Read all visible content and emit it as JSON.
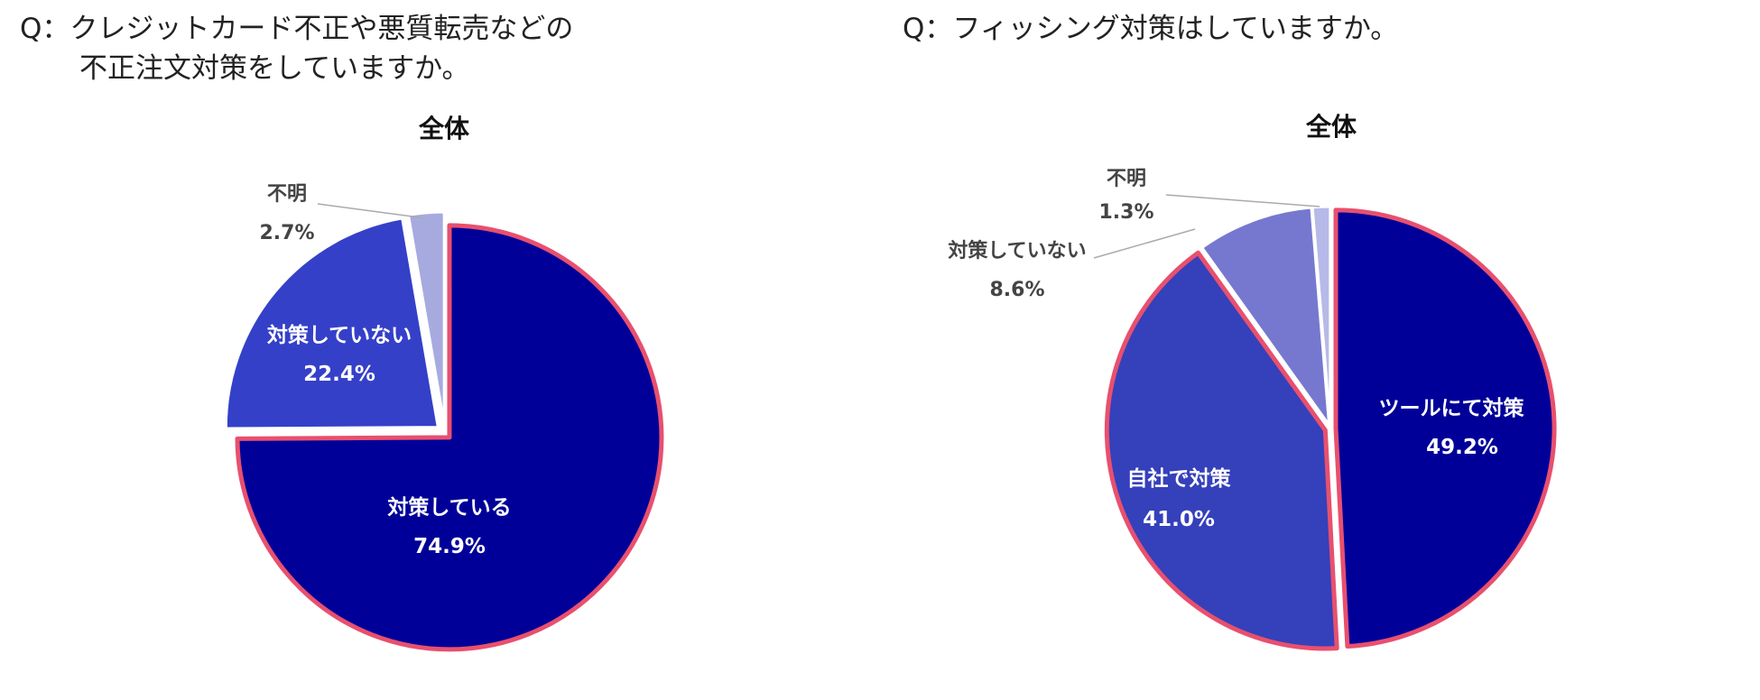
{
  "questions": {
    "q1": {
      "line1": "Q：クレジットカード不正や悪質転売などの",
      "line2": "不正注文対策をしていますか。"
    },
    "q2": {
      "line1": "Q：フィッシング対策はしていますか。"
    }
  },
  "chart_data": [
    {
      "type": "pie",
      "title": "全体",
      "unit": "%",
      "slices": [
        {
          "label": "対策している",
          "value": 74.9,
          "value_label": "74.9%",
          "color": "#000099",
          "highlight": true
        },
        {
          "label": "対策していない",
          "value": 22.4,
          "value_label": "22.4%",
          "color": "#3540c8",
          "highlight": false
        },
        {
          "label": "不明",
          "value": 2.7,
          "value_label": "2.7%",
          "color": "#a7aadf",
          "highlight": false
        }
      ],
      "highlight_color": "#e8506e"
    },
    {
      "type": "pie",
      "title": "全体",
      "unit": "%",
      "slices": [
        {
          "label": "ツールにて対策",
          "value": 49.2,
          "value_label": "49.2%",
          "color": "#000099",
          "highlight": true
        },
        {
          "label": "自社で対策",
          "value": 41.0,
          "value_label": "41.0%",
          "color": "#3540bb",
          "highlight": true
        },
        {
          "label": "対策していない",
          "value": 8.6,
          "value_label": "8.6%",
          "color": "#7678d0",
          "highlight": false
        },
        {
          "label": "不明",
          "value": 1.3,
          "value_label": "1.3%",
          "color": "#b7b9e8",
          "highlight": false
        }
      ],
      "highlight_color": "#e8506e"
    }
  ]
}
